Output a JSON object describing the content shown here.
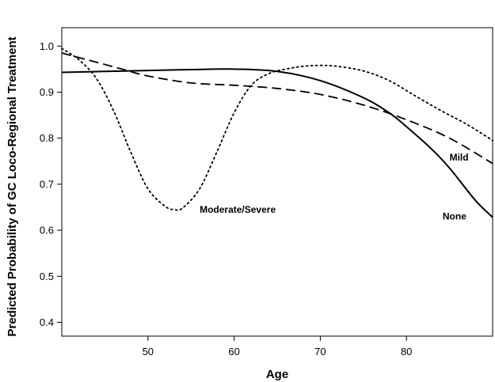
{
  "chart_data": {
    "type": "line",
    "xlabel": "Age",
    "ylabel": "Predicted Probability of GC Loco-Regional Treatment",
    "xlim": [
      40,
      90
    ],
    "ylim": [
      0.37,
      1.04
    ],
    "xticks": [
      50,
      60,
      70,
      80
    ],
    "yticks": [
      0.4,
      0.5,
      0.6,
      0.7,
      0.8,
      0.9,
      1.0
    ],
    "ytick_labels": [
      "0.4",
      "0.5",
      "0.6",
      "0.7",
      "0.8",
      "0.9",
      "1.0"
    ],
    "grid": false,
    "legend": "none",
    "series": [
      {
        "name": "None",
        "style": "solid",
        "x": [
          40,
          45,
          50,
          55,
          60,
          65,
          70,
          75,
          78,
          80,
          83,
          85,
          88,
          90
        ],
        "y": [
          0.943,
          0.945,
          0.947,
          0.949,
          0.95,
          0.945,
          0.925,
          0.888,
          0.855,
          0.825,
          0.775,
          0.735,
          0.665,
          0.628
        ]
      },
      {
        "name": "Mild",
        "style": "dashed",
        "x": [
          40,
          43,
          47,
          50,
          55,
          60,
          65,
          70,
          75,
          80,
          85,
          90
        ],
        "y": [
          0.985,
          0.97,
          0.95,
          0.935,
          0.92,
          0.915,
          0.908,
          0.895,
          0.872,
          0.84,
          0.8,
          0.745
        ]
      },
      {
        "name": "Moderate/Severe",
        "style": "dotted",
        "x": [
          40,
          42,
          44,
          46,
          48,
          50,
          52,
          53,
          54,
          56,
          58,
          60,
          62,
          64,
          66,
          68,
          70,
          72,
          75,
          78,
          81,
          84,
          87,
          90
        ],
        "y": [
          0.995,
          0.97,
          0.93,
          0.86,
          0.77,
          0.69,
          0.652,
          0.645,
          0.648,
          0.69,
          0.77,
          0.855,
          0.915,
          0.94,
          0.95,
          0.956,
          0.958,
          0.956,
          0.946,
          0.925,
          0.892,
          0.86,
          0.83,
          0.795
        ]
      }
    ],
    "annotations": [
      {
        "text": "Moderate/Severe",
        "x": 56,
        "y": 0.645
      },
      {
        "text": "Mild",
        "x": 85,
        "y": 0.758
      },
      {
        "text": "None",
        "x": 84.2,
        "y": 0.63
      }
    ]
  }
}
